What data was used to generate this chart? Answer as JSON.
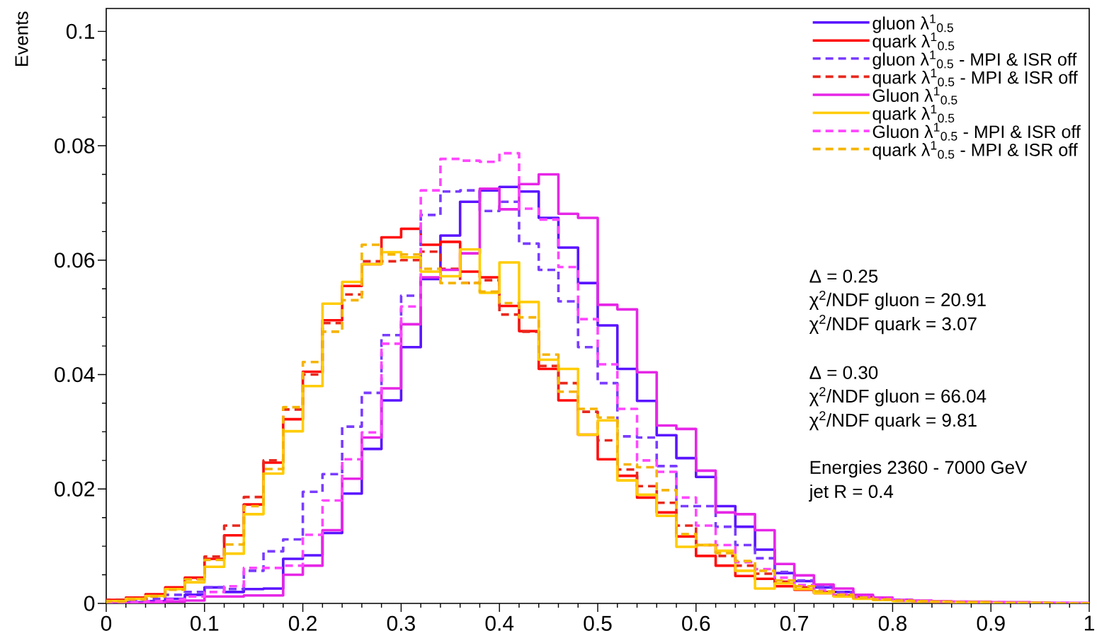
{
  "chart_data": {
    "type": "histogram",
    "ylabel": "Events",
    "bins": [
      0,
      0.02,
      0.04,
      0.06,
      0.08,
      0.1,
      0.12,
      0.14,
      0.16,
      0.18,
      0.2,
      0.22,
      0.24,
      0.26,
      0.28,
      0.3,
      0.32,
      0.34,
      0.36,
      0.38,
      0.4,
      0.42,
      0.44,
      0.46,
      0.48,
      0.5,
      0.52,
      0.54,
      0.56,
      0.58,
      0.6,
      0.62,
      0.64,
      0.66,
      0.68,
      0.7,
      0.72,
      0.74,
      0.76,
      0.78,
      0.8,
      0.82,
      0.84,
      0.86,
      0.88,
      0.9,
      0.92,
      0.94,
      0.96,
      0.98,
      1.0
    ],
    "xlim": [
      0,
      1
    ],
    "ylim": [
      0,
      0.104
    ],
    "xticks": [
      0,
      0.1,
      0.2,
      0.3,
      0.4,
      0.5,
      0.6,
      0.7,
      0.8,
      0.9,
      1
    ],
    "yticks": [
      0,
      0.02,
      0.04,
      0.06,
      0.08,
      0.1
    ],
    "legend": "top right",
    "series": [
      {
        "name": "gluon λ$^{1}$$_{0.5}$",
        "color": "#5a14ff",
        "line_style": "solid",
        "values": [
          0.0001,
          0.0002,
          0.0004,
          0.0008,
          0.0015,
          0.0028,
          0.002,
          0.0025,
          0.0026,
          0.0078,
          0.0084,
          0.0123,
          0.0192,
          0.027,
          0.0355,
          0.0448,
          0.0567,
          0.0643,
          0.0702,
          0.0722,
          0.0728,
          0.072,
          0.0674,
          0.0622,
          0.056,
          0.0486,
          0.041,
          0.0354,
          0.0294,
          0.0254,
          0.0221,
          0.017,
          0.0134,
          0.0094,
          0.0053,
          0.0039,
          0.0028,
          0.002,
          0.0012,
          0.0008,
          0.0005,
          0.0004,
          0.0003,
          0.0002,
          0.0002,
          0.0001,
          0.0001,
          0.0001,
          0,
          0
        ]
      },
      {
        "name": "quark λ$^{1}$$_{0.5}$",
        "color": "#ff0a0a",
        "line_style": "solid",
        "values": [
          0.0006,
          0.001,
          0.0016,
          0.0028,
          0.0045,
          0.0078,
          0.0119,
          0.0173,
          0.0246,
          0.0322,
          0.0405,
          0.0495,
          0.0555,
          0.0593,
          0.064,
          0.0655,
          0.0627,
          0.0632,
          0.058,
          0.057,
          0.052,
          0.0476,
          0.041,
          0.0355,
          0.0295,
          0.0252,
          0.0223,
          0.0185,
          0.0159,
          0.0117,
          0.0083,
          0.0066,
          0.0048,
          0.0043,
          0.003,
          0.0024,
          0.0018,
          0.0013,
          0.0009,
          0.0007,
          0.0005,
          0.0004,
          0.0003,
          0.0002,
          0.0002,
          0.0001,
          0.0001,
          0.0001,
          0,
          0
        ]
      },
      {
        "name": "gluon λ$^{1}$$_{0.5}$ - MPI & ISR off",
        "color": "#7a3cff",
        "line_style": "dashed",
        "values": [
          0.0002,
          0.0004,
          0.0008,
          0.0015,
          0.002,
          0.0028,
          0.0025,
          0.0057,
          0.0091,
          0.0112,
          0.0195,
          0.0226,
          0.0309,
          0.0368,
          0.0469,
          0.0538,
          0.0679,
          0.072,
          0.0722,
          0.0686,
          0.0702,
          0.0629,
          0.0583,
          0.0528,
          0.0448,
          0.0385,
          0.0292,
          0.029,
          0.024,
          0.017,
          0.017,
          0.0134,
          0.0102,
          0.0079,
          0.0055,
          0.004,
          0.0029,
          0.002,
          0.0014,
          0.0009,
          0.0006,
          0.0004,
          0.0003,
          0.0002,
          0.0002,
          0.0001,
          0.0001,
          0.0001,
          0,
          0
        ]
      },
      {
        "name": "quark λ$^{1}$$_{0.5}$ - MPI & ISR off",
        "color": "#e8281e",
        "line_style": "dashed",
        "values": [
          0.0006,
          0.0009,
          0.0014,
          0.0025,
          0.0043,
          0.0082,
          0.0136,
          0.0186,
          0.025,
          0.0339,
          0.04,
          0.049,
          0.054,
          0.0598,
          0.0598,
          0.06,
          0.0615,
          0.0585,
          0.056,
          0.0565,
          0.0505,
          0.0475,
          0.0415,
          0.0385,
          0.0335,
          0.0285,
          0.0234,
          0.0205,
          0.0176,
          0.0136,
          0.0102,
          0.0083,
          0.0066,
          0.0052,
          0.0038,
          0.0028,
          0.002,
          0.0014,
          0.001,
          0.0007,
          0.0005,
          0.0004,
          0.0003,
          0.0002,
          0.0002,
          0.0001,
          0.0001,
          0.0001,
          0,
          0
        ]
      },
      {
        "name": "Gluon λ$^{1}$$_{0.5}$",
        "color": "#e626e6",
        "line_style": "solid",
        "values": [
          0,
          0.0001,
          0.0002,
          0.0003,
          0.0005,
          0.0012,
          0.0012,
          0.0014,
          0.0014,
          0.005,
          0.0066,
          0.0128,
          0.0218,
          0.029,
          0.0376,
          0.0488,
          0.057,
          0.0583,
          0.0612,
          0.0725,
          0.0689,
          0.0733,
          0.075,
          0.0681,
          0.0674,
          0.0522,
          0.0514,
          0.0404,
          0.0311,
          0.0305,
          0.0232,
          0.0159,
          0.0156,
          0.0128,
          0.0069,
          0.0049,
          0.0033,
          0.0026,
          0.0015,
          0.001,
          0.0006,
          0.0005,
          0.0004,
          0.0003,
          0.0003,
          0.0002,
          0.0002,
          0.0001,
          0.0001,
          0.0001
        ]
      },
      {
        "name": "quark λ$^{1}$$_{0.5}$",
        "color": "#ffcc00",
        "line_style": "solid",
        "values": [
          0.0004,
          0.0008,
          0.0013,
          0.0025,
          0.0037,
          0.0064,
          0.0087,
          0.0156,
          0.0227,
          0.0301,
          0.038,
          0.0524,
          0.0562,
          0.0593,
          0.0614,
          0.0605,
          0.058,
          0.0572,
          0.0619,
          0.0543,
          0.0596,
          0.0527,
          0.0426,
          0.041,
          0.0295,
          0.032,
          0.0215,
          0.019,
          0.0153,
          0.0099,
          0.0102,
          0.0092,
          0.0057,
          0.0026,
          0.0035,
          0.0025,
          0.0018,
          0.0012,
          0.0008,
          0.0006,
          0.0004,
          0.0003,
          0.0003,
          0.0002,
          0.0002,
          0.0001,
          0.0001,
          0.0001,
          0,
          0
        ]
      },
      {
        "name": "Gluon λ$^{1}$$_{0.5}$ - MPI & ISR off",
        "color": "#ff46ff",
        "line_style": "dashed",
        "values": [
          0.0001,
          0.0002,
          0.0004,
          0.0007,
          0.0012,
          0.002,
          0.003,
          0.0062,
          0.0062,
          0.0066,
          0.012,
          0.018,
          0.0252,
          0.0299,
          0.0454,
          0.0519,
          0.0722,
          0.0777,
          0.0774,
          0.0772,
          0.0787,
          0.069,
          0.0671,
          0.0588,
          0.0497,
          0.0418,
          0.034,
          0.025,
          0.023,
          0.0185,
          0.0136,
          0.0102,
          0.0072,
          0.006,
          0.0045,
          0.0032,
          0.0023,
          0.0016,
          0.0011,
          0.0008,
          0.0005,
          0.0004,
          0.0003,
          0.0003,
          0.0002,
          0.0002,
          0.0001,
          0.0001,
          0.0001,
          0
        ]
      },
      {
        "name": "quark λ$^{1}$$_{0.5}$ - MPI & ISR off",
        "color": "#f5b400",
        "line_style": "dashed",
        "values": [
          0.0003,
          0.0007,
          0.0012,
          0.0024,
          0.0042,
          0.0076,
          0.0103,
          0.017,
          0.0235,
          0.0343,
          0.0422,
          0.0475,
          0.053,
          0.0627,
          0.061,
          0.061,
          0.0585,
          0.056,
          0.056,
          0.0545,
          0.0525,
          0.05,
          0.0435,
          0.037,
          0.034,
          0.0325,
          0.0243,
          0.0238,
          0.0198,
          0.0121,
          0.0102,
          0.0088,
          0.0074,
          0.0057,
          0.004,
          0.003,
          0.0021,
          0.0015,
          0.001,
          0.0007,
          0.0005,
          0.0004,
          0.0003,
          0.0002,
          0.0002,
          0.0001,
          0.0001,
          0.0001,
          0,
          0
        ]
      }
    ],
    "annotations": [
      "Δ = 0.25",
      "χ$^{2}$/NDF gluon = 20.91",
      "χ$^{2}$/NDF quark = 3.07",
      "Δ = 0.30",
      "χ$^{2}$/NDF gluon = 66.04",
      "χ$^{2}$/NDF quark = 9.81",
      "Energies 2360 - 7000 GeV",
      "jet R = 0.4"
    ]
  }
}
